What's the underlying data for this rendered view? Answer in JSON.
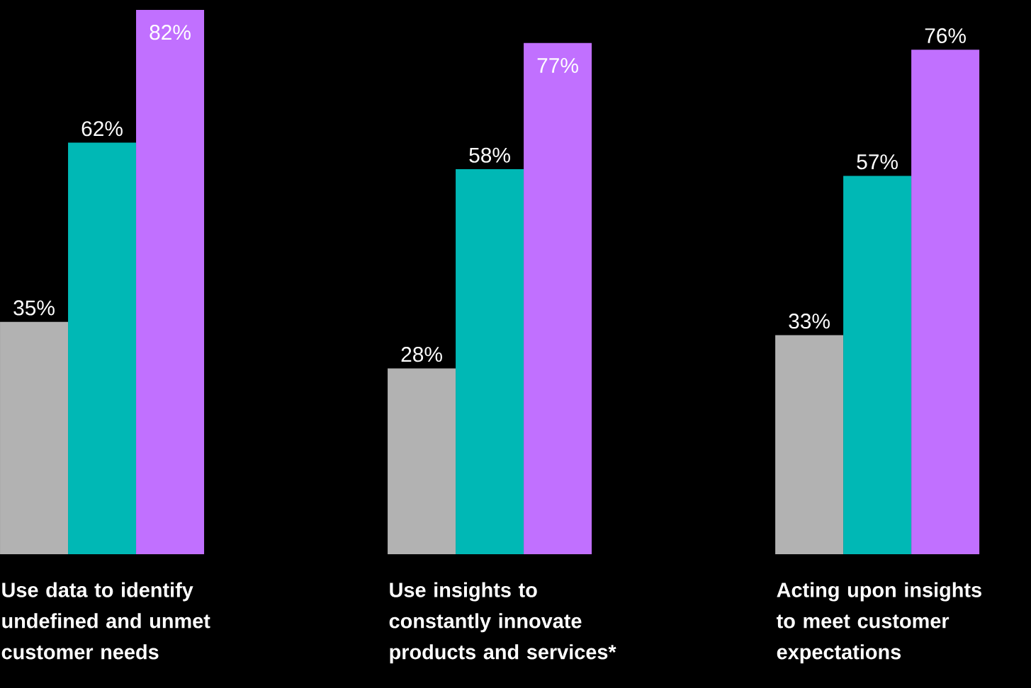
{
  "chart_data": {
    "type": "bar",
    "categories": [
      "Use data to identify undefined and unmet customer needs",
      "Use insights to constantly innovate products and services*",
      "Acting upon insights to meet customer expectations"
    ],
    "series": [
      {
        "color": "#b2b2b2",
        "values": [
          35,
          28,
          33
        ],
        "value_labels": [
          "35%",
          "28%",
          "33%"
        ]
      },
      {
        "color": "#00b8b5",
        "values": [
          62,
          58,
          57
        ],
        "value_labels": [
          "62%",
          "58%",
          "57%"
        ]
      },
      {
        "color": "#c170ff",
        "values": [
          82,
          77,
          76
        ],
        "value_labels": [
          "82%",
          "77%",
          "76%"
        ]
      }
    ]
  }
}
